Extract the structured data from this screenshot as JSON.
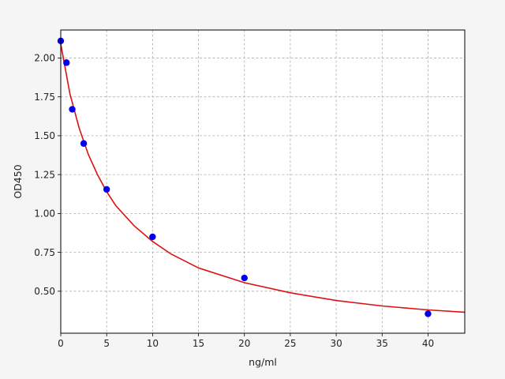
{
  "chart_data": {
    "type": "scatter",
    "title": "",
    "xlabel": "ng/ml",
    "ylabel": "OD450",
    "xlim": [
      0,
      44
    ],
    "ylim": [
      0.23,
      2.18
    ],
    "xticks": [
      0,
      5,
      10,
      15,
      20,
      25,
      30,
      35,
      40
    ],
    "yticks": [
      0.5,
      0.75,
      1.0,
      1.25,
      1.5,
      1.75,
      2.0
    ],
    "ytick_labels": [
      "0.50",
      "0.75",
      "1.00",
      "1.25",
      "1.50",
      "1.75",
      "2.00"
    ],
    "grid": true,
    "legend": "none",
    "series": [
      {
        "kind": "points",
        "color": "#0000ee",
        "x": [
          0,
          0.625,
          1.25,
          2.5,
          5,
          10,
          20,
          40
        ],
        "y": [
          2.11,
          1.97,
          1.67,
          1.45,
          1.155,
          0.85,
          0.585,
          0.355
        ]
      },
      {
        "kind": "fit-curve",
        "color": "#dd1111",
        "x": [
          0,
          1,
          2,
          3,
          4,
          5,
          6,
          8,
          10,
          12,
          15,
          20,
          25,
          30,
          35,
          40,
          44
        ],
        "y": [
          2.09,
          1.77,
          1.55,
          1.38,
          1.25,
          1.14,
          1.05,
          0.92,
          0.82,
          0.74,
          0.65,
          0.555,
          0.49,
          0.44,
          0.405,
          0.38,
          0.365
        ]
      }
    ]
  }
}
